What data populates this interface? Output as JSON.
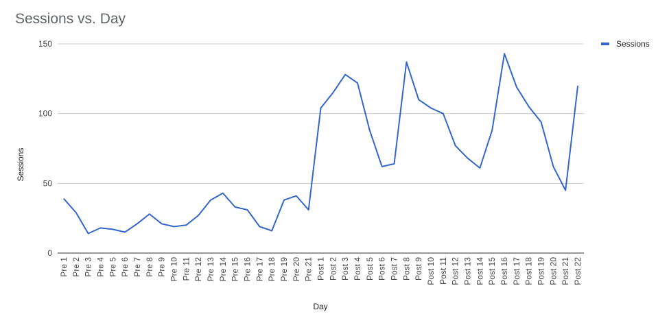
{
  "chart_data": {
    "type": "line",
    "title": "Sessions vs. Day",
    "xlabel": "Day",
    "ylabel": "Sessions",
    "ylim": [
      0,
      150
    ],
    "yticks": [
      0,
      50,
      100,
      150
    ],
    "grid": true,
    "legend_position": "right",
    "categories": [
      "Pre 1",
      "Pre 2",
      "Pre 3",
      "Pre 4",
      "Pre 5",
      "Pre 6",
      "Pre 7",
      "Pre 8",
      "Pre 9",
      "Pre 10",
      "Pre 11",
      "Pre 12",
      "Pre 13",
      "Pre 14",
      "Pre 15",
      "Pre 16",
      "Pre 17",
      "Pre 18",
      "Pre 19",
      "Pre 20",
      "Pre 21",
      "Post 1",
      "Post 2",
      "Post 3",
      "Post 4",
      "Post 5",
      "Post 6",
      "Post 7",
      "Post 8",
      "Post 9",
      "Post 10",
      "Post 11",
      "Post 12",
      "Post 13",
      "Post 14",
      "Post 15",
      "Post 16",
      "Post 17",
      "Post 18",
      "Post 19",
      "Post 20",
      "Post 21",
      "Post 22"
    ],
    "series": [
      {
        "name": "Sessions",
        "color": "#3366cc",
        "values": [
          39,
          29,
          14,
          18,
          17,
          15,
          21,
          28,
          21,
          19,
          20,
          27,
          38,
          43,
          33,
          31,
          19,
          16,
          38,
          41,
          31,
          104,
          115,
          128,
          122,
          88,
          62,
          64,
          137,
          110,
          104,
          100,
          77,
          68,
          61,
          88,
          143,
          119,
          105,
          94,
          62,
          45,
          120
        ]
      }
    ]
  }
}
